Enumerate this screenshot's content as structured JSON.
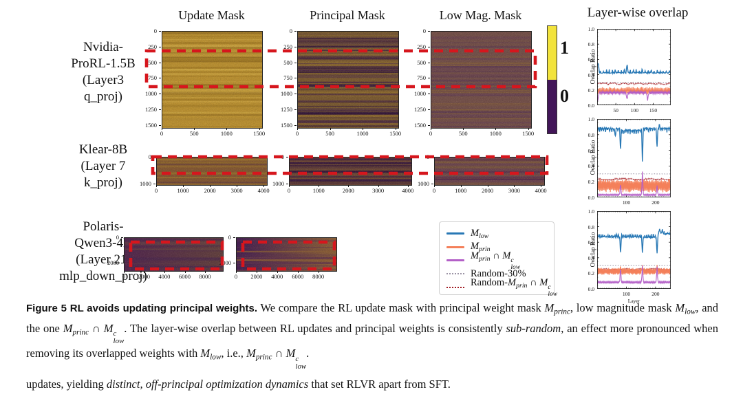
{
  "figure": {
    "column_titles": [
      "Update Mask",
      "Principal Mask",
      "Low Mag. Mask"
    ],
    "overlap_title": "Layer-wise overlap",
    "colorbar": {
      "top_label": "1",
      "bottom_label": "0",
      "top_color": "#f2e33c",
      "bottom_color": "#421558"
    },
    "highlight_color": "#d6161d",
    "rows": [
      {
        "label_lines": [
          "Nvidia-",
          "ProRL-1.5B",
          "(Layer3",
          "q_proj)"
        ],
        "y_ticks": [
          "0",
          "250",
          "500",
          "750",
          "1000",
          "1250",
          "1500"
        ],
        "x_ticks": [
          "0",
          "500",
          "1000",
          "1500"
        ],
        "heatmaps": [
          {
            "name": "update-mask",
            "base": "#bb9133",
            "stripes": [
              "#a37b26",
              "#cfa947",
              "#8f6a22"
            ],
            "density": 55,
            "noise": 0.16
          },
          {
            "name": "principal-mask",
            "base": "#7c5c33",
            "stripes": [
              "#3f1e49",
              "#2e123f",
              "#9a7631",
              "#5b3a48"
            ],
            "density": 85,
            "noise": 0.2
          },
          {
            "name": "low-mag-mask",
            "base": "#75514b",
            "stripes": [
              "#5f3c54",
              "#86613c",
              "#6b4556"
            ],
            "density": 60,
            "noise": 0.18
          }
        ]
      },
      {
        "label_lines": [
          "Klear-8B",
          "(Layer 7",
          "k_proj)"
        ],
        "y_ticks": [
          "0",
          "1000"
        ],
        "x_ticks": [
          "0",
          "1000",
          "2000",
          "3000",
          "4000"
        ],
        "heatmaps": [
          {
            "name": "update-mask",
            "base": "#835834",
            "stripes": [
              "#a8802f",
              "#5e3a45",
              "#96702c"
            ],
            "density": 16,
            "noise": 0.16
          },
          {
            "name": "principal-mask",
            "base": "#6d4938",
            "stripes": [
              "#3a1b45",
              "#8a6230",
              "#2e1140"
            ],
            "density": 26,
            "noise": 0.18
          },
          {
            "name": "low-mag-mask",
            "base": "#6d4751",
            "stripes": [
              "#85613a",
              "#53294d",
              "#7b5742"
            ],
            "density": 20,
            "noise": 0.18
          }
        ]
      },
      {
        "label_lines": [
          "Polaris-",
          "Qwen3-4B",
          "(Layer 21:",
          "mlp_down_proj)"
        ],
        "y_ticks": [
          "0",
          "2000"
        ],
        "x_ticks": [
          "0",
          "2000",
          "4000",
          "6000",
          "8000"
        ],
        "heatmaps": [
          {
            "name": "update-mask",
            "base": "#5c3a4f",
            "stripes": [
              "#4c2a50",
              "#6b4946"
            ],
            "density": 14,
            "noise": 0.15,
            "grad": [
              "#53284f",
              "#63413f"
            ]
          },
          {
            "name": "principal-mask",
            "base": "#7a5340",
            "stripes": [
              "#8a5f38",
              "#5e3350"
            ],
            "density": 14,
            "noise": 0.15,
            "grad": [
              "#451f53",
              "#8d6138"
            ]
          }
        ]
      }
    ],
    "legend": {
      "entries": [
        {
          "label": "M_{low}",
          "color": "#2878b5",
          "dash": "solid"
        },
        {
          "label": "M_{prin}",
          "color": "#f4805a",
          "dash": "solid"
        },
        {
          "label": "M_{prin} ∩ M^{c}_{low}",
          "color": "#b35fc7",
          "dash": "solid"
        },
        {
          "label": "Random-30%",
          "color": "#9b93a5",
          "dash": "dotted"
        },
        {
          "label": "Random-M_{prin} ∩ M^{c}_{low}",
          "color": "#a11a22",
          "dash": "dotted"
        }
      ]
    }
  },
  "chart_data": [
    {
      "type": "line",
      "title": "Layer-wise overlap",
      "ylabel": "Overlap Ratio",
      "ylim": [
        0,
        1
      ],
      "y_ticks": [
        "0.0",
        "0.2",
        "0.4",
        "0.6",
        "0.8",
        "1.0"
      ],
      "x_max": 197,
      "x_ticks": [
        50,
        100,
        150
      ],
      "xlabel": "",
      "series": [
        {
          "name": "Random-30%",
          "color": "#9b93a5",
          "style": "dotted",
          "base": 0.3,
          "amp": 0.003
        },
        {
          "name": "Random-M_{prin} ∩ M^{c}_{low}",
          "color": "#a11a22",
          "style": "dotted",
          "base": 0.282,
          "amp": 0.012,
          "zigzag": true
        },
        {
          "name": "M_{prin}",
          "color": "#f4805a",
          "style": "solid",
          "base": 0.19,
          "amp": 0.05,
          "zigzag": true
        },
        {
          "name": "M_{prin} ∩ M^{c}_{low}",
          "color": "#b35fc7",
          "style": "solid",
          "base": 0.165,
          "amp": 0.02,
          "zigzag": true,
          "dips": [
            [
              2,
              0.05
            ],
            [
              80,
              0.06
            ],
            [
              135,
              0.06
            ]
          ]
        },
        {
          "name": "M_{low}",
          "color": "#2878b5",
          "style": "solid",
          "base": 0.425,
          "amp": 0.008,
          "spike_period": 8,
          "spike_amp": 0.045,
          "dips": [
            [
              1,
              0.54
            ],
            [
              3,
              0.56
            ],
            [
              80,
              0.54
            ]
          ]
        }
      ]
    },
    {
      "type": "line",
      "title": "Layer-wise overlap",
      "ylabel": "Overlap Ratio",
      "ylim": [
        0,
        1
      ],
      "y_ticks": [
        "0.0",
        "0.2",
        "0.4",
        "0.6",
        "0.8",
        "1.0"
      ],
      "x_max": 252,
      "x_ticks": [
        100,
        200
      ],
      "xlabel": "",
      "series": [
        {
          "name": "Random-30%",
          "color": "#9b93a5",
          "style": "dotted",
          "base": 0.3,
          "amp": 0.002
        },
        {
          "name": "Random-M_{prin} ∩ M^{c}_{low}",
          "color": "#a11a22",
          "style": "dotted",
          "base": 0.232,
          "amp": 0.01,
          "zigzag": true
        },
        {
          "name": "M_{prin}",
          "color": "#f4805a",
          "style": "solid",
          "base": 0.15,
          "amp": 0.085,
          "zigzag": true
        },
        {
          "name": "M_{prin} ∩ M^{c}_{low}",
          "color": "#b35fc7",
          "style": "solid",
          "base": 0.032,
          "amp": 0.01,
          "zigzag": true,
          "dips": [
            [
              80,
              0.2
            ],
            [
              155,
              0.35
            ],
            [
              205,
              0.16
            ]
          ]
        },
        {
          "name": "M_{low}",
          "color": "#2878b5",
          "style": "solid",
          "base": 0.88,
          "amp": 0.01,
          "spike_period": 7,
          "spike_amp": -0.045,
          "regions": [
            {
              "from": 85,
              "to": 150,
              "base": 0.855
            }
          ],
          "dips": [
            [
              62,
              0.77
            ],
            [
              80,
              0.58
            ],
            [
              155,
              0.43
            ],
            [
              205,
              0.63
            ],
            [
              213,
              0.94
            ]
          ]
        }
      ]
    },
    {
      "type": "line",
      "title": "Layer-wise overlap",
      "ylabel": "Overlap Ratio",
      "ylim": [
        0,
        1
      ],
      "y_ticks": [
        "0.0",
        "0.2",
        "0.4",
        "0.6",
        "0.8",
        "1.0"
      ],
      "x_max": 252,
      "x_ticks": [
        100,
        200
      ],
      "xlabel": "Layer",
      "series": [
        {
          "name": "Random-30%",
          "color": "#9b93a5",
          "style": "dotted",
          "base": 0.3,
          "amp": 0.002
        },
        {
          "name": "Random-M_{prin} ∩ M^{c}_{low}",
          "color": "#a11a22",
          "style": "dotted",
          "base": 0.252,
          "amp": 0.01,
          "zigzag": true
        },
        {
          "name": "M_{prin}",
          "color": "#f4805a",
          "style": "solid",
          "base": 0.225,
          "amp": 0.045,
          "zigzag": true,
          "dips": [
            [
              80,
              0.3
            ],
            [
              155,
              0.31
            ],
            [
              205,
              0.31
            ]
          ]
        },
        {
          "name": "M_{prin} ∩ M^{c}_{low}",
          "color": "#b35fc7",
          "style": "solid",
          "base": 0.085,
          "amp": 0.012,
          "zigzag": true,
          "dips": [
            [
              80,
              0.3
            ],
            [
              155,
              0.31
            ],
            [
              205,
              0.3
            ]
          ]
        },
        {
          "name": "M_{low}",
          "color": "#2878b5",
          "style": "solid",
          "base": 0.665,
          "amp": 0.01,
          "spike_period": 6,
          "spike_amp": 0.035,
          "regions": [
            {
              "from": 208,
              "to": 252,
              "base": 0.705
            }
          ],
          "dips": [
            [
              80,
              0.44
            ],
            [
              155,
              0.45
            ],
            [
              205,
              0.44
            ],
            [
              214,
              0.78
            ],
            [
              219,
              0.72
            ],
            [
              223,
              0.77
            ]
          ]
        }
      ]
    }
  ],
  "caption": {
    "parts": [
      {
        "t": "Figure 5",
        "style": "figlabel"
      },
      {
        "t": "  ",
        "style": "serif"
      },
      {
        "t": "RL avoids updating principal weights.",
        "style": "figtitle"
      },
      {
        "t": " We compare the RL update mask with principal weight mask ",
        "style": "serif"
      },
      {
        "t": "M_{princ}",
        "style": "math"
      },
      {
        "t": ", low magnitude mask ",
        "style": "serif"
      },
      {
        "t": "M_{low}",
        "style": "math"
      },
      {
        "t": ", and the one ",
        "style": "serif"
      },
      {
        "t": "M_{princ} ∩ M^{c}_{low}",
        "style": "math"
      },
      {
        "t": ". The layer-wise overlap between RL updates and principal weights is consistently ",
        "style": "serif"
      },
      {
        "t": "sub-random",
        "style": "italic"
      },
      {
        "t": ", an effect more pronounced when removing its overlapped weights with ",
        "style": "serif"
      },
      {
        "t": "M_{low}",
        "style": "math"
      },
      {
        "t": ", i.e., ",
        "style": "serif"
      },
      {
        "t": "M_{princ} ∩ M^{c}_{low}",
        "style": "math"
      },
      {
        "t": ".",
        "style": "serif"
      }
    ]
  },
  "body": {
    "parts": [
      {
        "t": "updates, yielding ",
        "style": "serif"
      },
      {
        "t": "distinct, off-principal optimization dynamics",
        "style": "italic"
      },
      {
        "t": " that set RLVR apart from SFT.",
        "style": "serif"
      }
    ]
  }
}
